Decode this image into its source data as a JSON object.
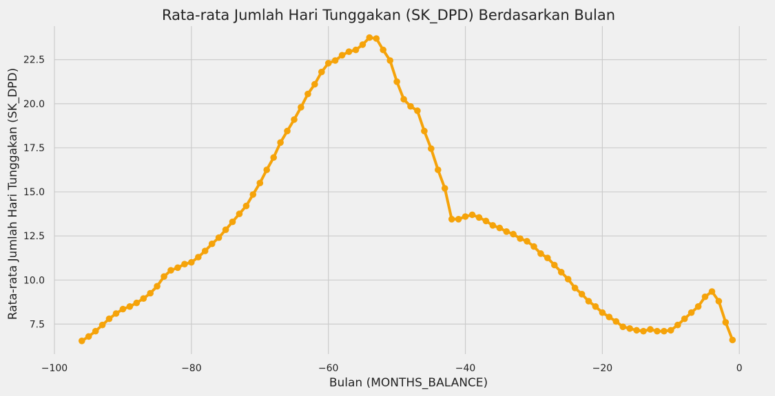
{
  "chart_data": {
    "type": "line",
    "title": "Rata-rata Jumlah Hari Tunggakan (SK_DPD) Berdasarkan Bulan",
    "xlabel": "Bulan (MONTHS_BALANCE)",
    "ylabel": "Rata-rata Jumlah Hari Tunggakan (SK_DPD)",
    "xlim": [
      -100,
      4
    ],
    "ylim": [
      5.8,
      24.4
    ],
    "xticks": [
      -100,
      -80,
      -60,
      -40,
      -20,
      0
    ],
    "xtick_labels": [
      "−100",
      "−80",
      "−60",
      "−40",
      "−20",
      "0"
    ],
    "yticks": [
      7.5,
      10.0,
      12.5,
      15.0,
      17.5,
      20.0,
      22.5
    ],
    "ytick_labels": [
      "7.5",
      "10.0",
      "12.5",
      "15.0",
      "17.5",
      "20.0",
      "22.5"
    ],
    "grid": true,
    "color": "#f5a30a",
    "x": [
      -96,
      -95,
      -94,
      -93,
      -92,
      -91,
      -90,
      -89,
      -88,
      -87,
      -86,
      -85,
      -84,
      -83,
      -82,
      -81,
      -80,
      -79,
      -78,
      -77,
      -76,
      -75,
      -74,
      -73,
      -72,
      -71,
      -70,
      -69,
      -68,
      -67,
      -66,
      -65,
      -64,
      -63,
      -62,
      -61,
      -60,
      -59,
      -58,
      -57,
      -56,
      -55,
      -54,
      -53,
      -52,
      -51,
      -50,
      -49,
      -48,
      -47,
      -46,
      -45,
      -44,
      -43,
      -42,
      -41,
      -40,
      -39,
      -38,
      -37,
      -36,
      -35,
      -34,
      -33,
      -32,
      -31,
      -30,
      -29,
      -28,
      -27,
      -26,
      -25,
      -24,
      -23,
      -22,
      -21,
      -20,
      -19,
      -18,
      -17,
      -16,
      -15,
      -14,
      -13,
      -12,
      -11,
      -10,
      -9,
      -8,
      -7,
      -6,
      -5,
      -4,
      -3,
      -2,
      -1
    ],
    "y": [
      6.55,
      6.8,
      7.1,
      7.45,
      7.8,
      8.1,
      8.35,
      8.5,
      8.7,
      8.95,
      9.25,
      9.65,
      10.2,
      10.55,
      10.7,
      10.9,
      11.0,
      11.3,
      11.65,
      12.05,
      12.4,
      12.85,
      13.3,
      13.75,
      14.2,
      14.85,
      15.5,
      16.25,
      16.95,
      17.8,
      18.45,
      19.1,
      19.8,
      20.55,
      21.1,
      21.8,
      22.3,
      22.45,
      22.75,
      22.95,
      23.05,
      23.35,
      23.75,
      23.7,
      23.05,
      22.45,
      21.25,
      20.25,
      19.85,
      19.6,
      18.45,
      17.45,
      16.25,
      15.2,
      13.45,
      13.45,
      13.6,
      13.7,
      13.55,
      13.35,
      13.1,
      12.95,
      12.75,
      12.6,
      12.35,
      12.2,
      11.9,
      11.5,
      11.25,
      10.85,
      10.45,
      10.05,
      9.55,
      9.2,
      8.8,
      8.5,
      8.15,
      7.9,
      7.65,
      7.35,
      7.25,
      7.15,
      7.1,
      7.2,
      7.1,
      7.1,
      7.15,
      7.45,
      7.8,
      8.15,
      8.5,
      9.05,
      9.35,
      8.8,
      7.6,
      6.6
    ]
  }
}
